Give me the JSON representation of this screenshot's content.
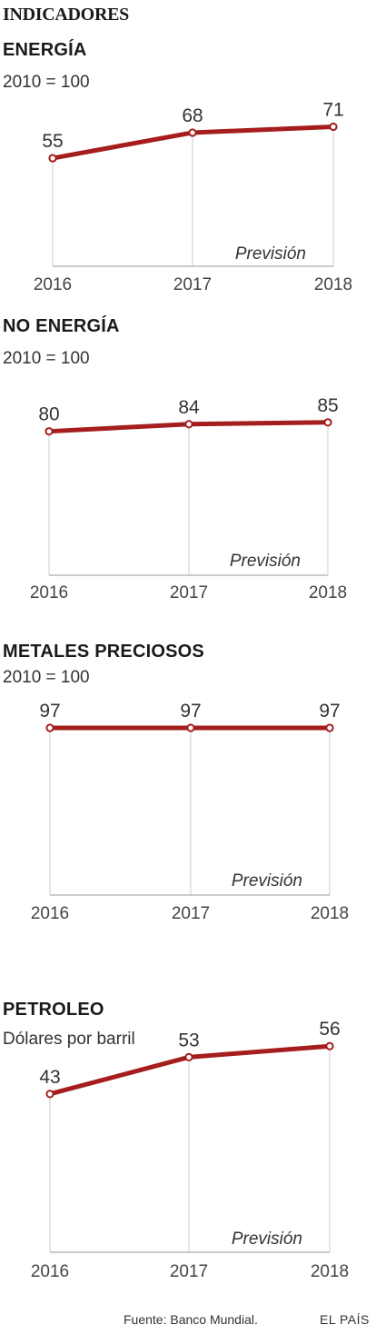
{
  "header": {
    "title": "INDICADORES"
  },
  "chart_data": [
    {
      "type": "line",
      "title": "ENERGÍA",
      "subtitle": "2010 = 100",
      "categories": [
        "2016",
        "2017",
        "2018"
      ],
      "values": [
        55,
        68,
        71
      ],
      "data_labels": [
        "55",
        "68",
        "71"
      ],
      "forecast_label": "Previsión",
      "ylim": [
        0,
        80
      ],
      "grid": false,
      "color": "#a51d1d"
    },
    {
      "type": "line",
      "title": "NO ENERGÍA",
      "subtitle": "2010 = 100",
      "categories": [
        "2016",
        "2017",
        "2018"
      ],
      "values": [
        80,
        84,
        85
      ],
      "data_labels": [
        "80",
        "84",
        "85"
      ],
      "forecast_label": "Previsión",
      "ylim": [
        0,
        95
      ],
      "grid": false,
      "color": "#a51d1d"
    },
    {
      "type": "line",
      "title": "METALES PRECIOSOS",
      "subtitle": "2010 = 100",
      "categories": [
        "2016",
        "2017",
        "2018"
      ],
      "values": [
        97,
        97,
        97
      ],
      "data_labels": [
        "97",
        "97",
        "97"
      ],
      "forecast_label": "Previsión",
      "ylim": [
        0,
        97
      ],
      "grid": false,
      "color": "#a51d1d"
    },
    {
      "type": "line",
      "title": "PETROLEO",
      "subtitle": "Dólares por barril",
      "categories": [
        "2016",
        "2017",
        "2018"
      ],
      "values": [
        43,
        53,
        56
      ],
      "data_labels": [
        "43",
        "53",
        "56"
      ],
      "forecast_label": "Previsión",
      "ylim": [
        0,
        60
      ],
      "grid": false,
      "color": "#a51d1d"
    }
  ],
  "footer": {
    "source": "Fuente: Banco Mundial.",
    "brand": "EL PAÍS"
  }
}
